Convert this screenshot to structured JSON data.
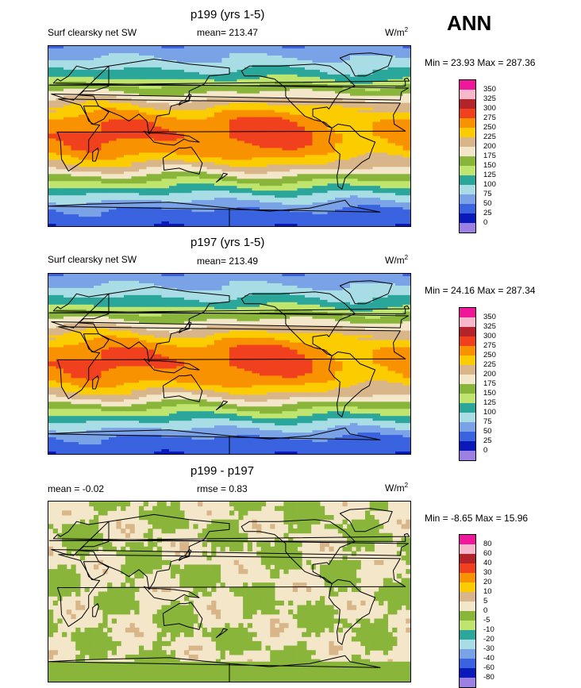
{
  "season": "ANN",
  "panels": [
    {
      "title": "p199 (yrs 1-5)",
      "left_label": "Surf clearsky net SW",
      "center_label": "mean= 213.47",
      "unit_base": "W/m",
      "unit_sup": "2",
      "minmax": "Min =  23.93 Max = 287.36",
      "kind": "field"
    },
    {
      "title": "p197 (yrs 1-5)",
      "left_label": "Surf clearsky net SW",
      "center_label": "mean= 213.49",
      "unit_base": "W/m",
      "unit_sup": "2",
      "minmax": "Min =  24.16 Max = 287.34",
      "kind": "field"
    },
    {
      "title": "p199 - p197",
      "left_label": "mean =  -0.02",
      "center_label": "rmse =   0.83",
      "unit_base": "W/m",
      "unit_sup": "2",
      "minmax": "Min =  -8.65 Max =  15.96",
      "kind": "diff"
    }
  ],
  "colorbars": {
    "field": {
      "labels": [
        "350",
        "325",
        "300",
        "275",
        "250",
        "225",
        "200",
        "175",
        "150",
        "125",
        "100",
        "75",
        "50",
        "25",
        "0"
      ],
      "colors": [
        "#f0189a",
        "#f7b8cc",
        "#b4222a",
        "#f0401e",
        "#f99200",
        "#fbcd00",
        "#d9b68a",
        "#f4e6c8",
        "#88b53a",
        "#c0e56e",
        "#2aa79a",
        "#a8dde6",
        "#7aa2e6",
        "#3a63e0",
        "#0a1aba",
        "#9d80e3"
      ]
    },
    "diff": {
      "labels": [
        "80",
        "60",
        "40",
        "30",
        "20",
        "10",
        "5",
        "0",
        "-5",
        "-10",
        "-20",
        "-30",
        "-40",
        "-60",
        "-80"
      ],
      "colors": [
        "#f0189a",
        "#f7b8cc",
        "#b4222a",
        "#f0401e",
        "#f99200",
        "#fbcd00",
        "#d9b68a",
        "#f4e6c8",
        "#88b53a",
        "#c0e56e",
        "#2aa79a",
        "#a8dde6",
        "#7aa2e6",
        "#3a63e0",
        "#0a1aba",
        "#9d80e3"
      ]
    }
  },
  "chart_data": [
    {
      "type": "heatmap",
      "title": "p199 (yrs 1-5)",
      "variable": "Surf clearsky net SW",
      "units": "W/m2",
      "mean": 213.47,
      "min": 23.93,
      "max": 287.36,
      "levels": [
        0,
        25,
        50,
        75,
        100,
        125,
        150,
        175,
        200,
        225,
        250,
        275,
        300,
        325,
        350
      ],
      "lat_profile": {
        "lat": [
          -90,
          -75,
          -60,
          -45,
          -30,
          -15,
          0,
          15,
          30,
          45,
          60,
          75,
          90
        ],
        "value": [
          30,
          45,
          90,
          150,
          215,
          260,
          275,
          265,
          225,
          170,
          115,
          80,
          55
        ]
      }
    },
    {
      "type": "heatmap",
      "title": "p197 (yrs 1-5)",
      "variable": "Surf clearsky net SW",
      "units": "W/m2",
      "mean": 213.49,
      "min": 24.16,
      "max": 287.34,
      "levels": [
        0,
        25,
        50,
        75,
        100,
        125,
        150,
        175,
        200,
        225,
        250,
        275,
        300,
        325,
        350
      ],
      "lat_profile": {
        "lat": [
          -90,
          -75,
          -60,
          -45,
          -30,
          -15,
          0,
          15,
          30,
          45,
          60,
          75,
          90
        ],
        "value": [
          30,
          45,
          90,
          150,
          215,
          260,
          275,
          265,
          225,
          170,
          115,
          80,
          55
        ]
      }
    },
    {
      "type": "heatmap",
      "title": "p199 - p197",
      "units": "W/m2",
      "mean": -0.02,
      "rmse": 0.83,
      "min": -8.65,
      "max": 15.96,
      "levels": [
        -80,
        -60,
        -40,
        -30,
        -20,
        -10,
        -5,
        0,
        5,
        10,
        20,
        30,
        40,
        60,
        80
      ]
    }
  ]
}
